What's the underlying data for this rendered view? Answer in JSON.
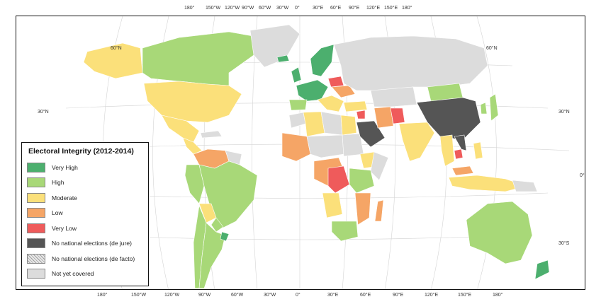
{
  "map": {
    "top_ticks": [
      "180°",
      "150°W",
      "120°W",
      "90°W",
      "60°W",
      "30°W",
      "0°",
      "30°E",
      "60°E",
      "90°E",
      "120°E",
      "150°E",
      "180°"
    ],
    "bottom_ticks": [
      "180°",
      "150°W",
      "120°W",
      "90°W",
      "60°W",
      "30°W",
      "0°",
      "30°E",
      "60°E",
      "90°E",
      "120°E",
      "150°E",
      "180°"
    ],
    "lat_labels": [
      "60°N",
      "30°N",
      "0°",
      "30°S"
    ]
  },
  "legend": {
    "title": "Electoral Integrity (2012-2014)",
    "items": [
      {
        "label": "Very High",
        "color": "#4caf6e"
      },
      {
        "label": "High",
        "color": "#a8d878"
      },
      {
        "label": "Moderate",
        "color": "#fbe07a"
      },
      {
        "label": "Low",
        "color": "#f5a566"
      },
      {
        "label": "Very Low",
        "color": "#ef5b5b"
      },
      {
        "label": "No national elections (de jure)",
        "color": "#555555"
      },
      {
        "label": "No national elections (de facto)",
        "color": "#e0e0e0",
        "hatched": true
      },
      {
        "label": "Not yet covered",
        "color": "#dcdcdc"
      }
    ]
  }
}
